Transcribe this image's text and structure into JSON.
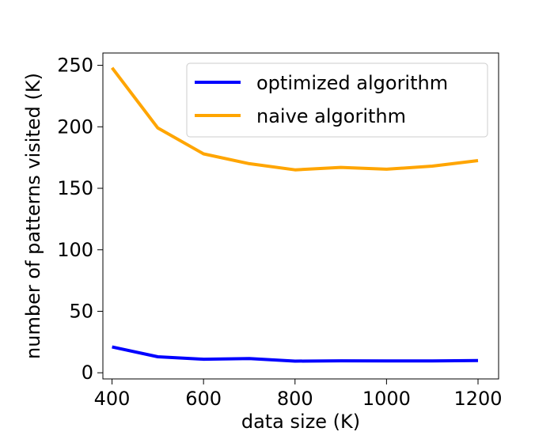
{
  "chart_data": {
    "type": "line",
    "title": "",
    "xlabel": "data size (K)",
    "ylabel": "number of patterns visited (K)",
    "xlim": [
      380,
      1245
    ],
    "ylim": [
      -5,
      260
    ],
    "xticks": [
      400,
      600,
      800,
      1000,
      1200
    ],
    "yticks": [
      0,
      50,
      100,
      150,
      200,
      250
    ],
    "grid": false,
    "legend_position": "top-right",
    "x": [
      400,
      500,
      600,
      700,
      800,
      900,
      1000,
      1100,
      1200
    ],
    "series": [
      {
        "name": "optimized algorithm",
        "color": "#0000ff",
        "values": [
          21,
          13,
          11,
          11.5,
          9.5,
          9.7,
          9.6,
          9.6,
          10
        ]
      },
      {
        "name": "naive algorithm",
        "color": "#ffa500",
        "values": [
          248,
          199,
          178,
          170,
          165,
          167,
          165.5,
          168,
          172.5
        ]
      }
    ]
  }
}
